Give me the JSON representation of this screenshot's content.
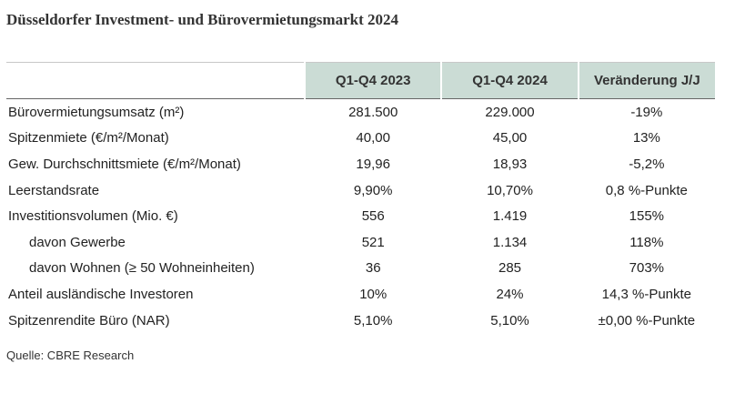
{
  "title": "Düsseldorfer Investment- und Bürovermietungsmarkt 2024",
  "table": {
    "header": [
      "Q1-Q4 2023",
      "Q1-Q4 2024",
      "Veränderung J/J"
    ],
    "rows": [
      [
        "Bürovermietungsumsatz (m²)",
        "281.500",
        "229.000",
        "-19%"
      ],
      [
        "Spitzenmiete (€/m²/Monat)",
        "40,00",
        "45,00",
        "13%"
      ],
      [
        "Gew. Durchschnittsmiete (€/m²/Monat)",
        "19,96",
        "18,93",
        "-5,2%"
      ],
      [
        "Leerstandsrate",
        "9,90%",
        "10,70%",
        "0,8 %-Punkte"
      ],
      [
        "Investitionsvolumen (Mio. €)",
        "556",
        "1.419",
        "155%"
      ],
      [
        "davon Gewerbe",
        "521",
        "1.134",
        "118%"
      ],
      [
        "davon Wohnen (≥ 50 Wohneinheiten)",
        "36",
        "285",
        "703%"
      ],
      [
        "Anteil ausländische Investoren",
        "10%",
        "24%",
        "14,3 %-Punkte"
      ],
      [
        "Spitzenrendite Büro (NAR)",
        "5,10%",
        "5,10%",
        "±0,00 %-Punkte"
      ]
    ]
  },
  "source": "Quelle: CBRE Research"
}
